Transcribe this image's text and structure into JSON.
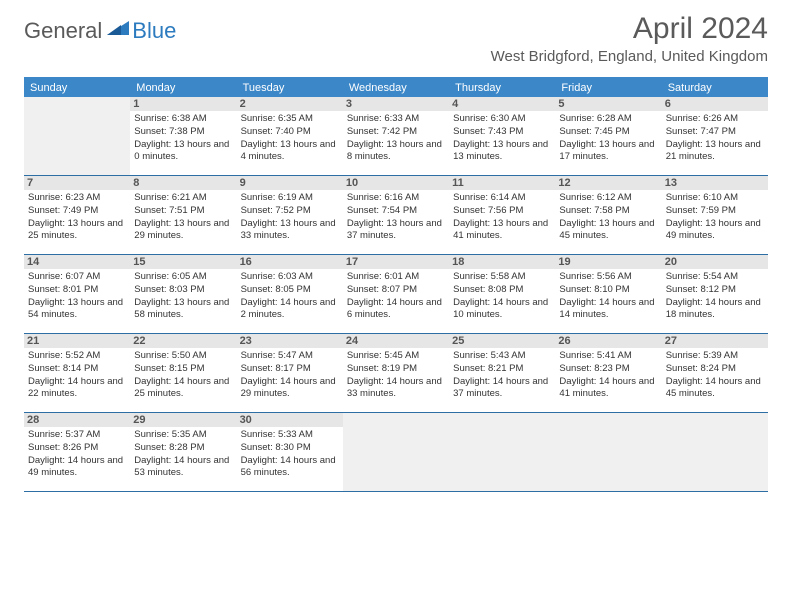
{
  "logo": {
    "text_general": "General",
    "text_blue": "Blue"
  },
  "title": "April 2024",
  "location": "West Bridgford, England, United Kingdom",
  "colors": {
    "header_bg": "#3b87c8",
    "header_text": "#ffffff",
    "divider": "#2d6ea5",
    "daynum_bg": "#e6e6e6",
    "empty_bg": "#f0f0f0",
    "text": "#333333",
    "title_text": "#5a5a5a"
  },
  "days_of_week": [
    "Sunday",
    "Monday",
    "Tuesday",
    "Wednesday",
    "Thursday",
    "Friday",
    "Saturday"
  ],
  "weeks": [
    [
      {
        "empty": true
      },
      {
        "num": "1",
        "sunrise": "6:38 AM",
        "sunset": "7:38 PM",
        "daylight": "13 hours and 0 minutes."
      },
      {
        "num": "2",
        "sunrise": "6:35 AM",
        "sunset": "7:40 PM",
        "daylight": "13 hours and 4 minutes."
      },
      {
        "num": "3",
        "sunrise": "6:33 AM",
        "sunset": "7:42 PM",
        "daylight": "13 hours and 8 minutes."
      },
      {
        "num": "4",
        "sunrise": "6:30 AM",
        "sunset": "7:43 PM",
        "daylight": "13 hours and 13 minutes."
      },
      {
        "num": "5",
        "sunrise": "6:28 AM",
        "sunset": "7:45 PM",
        "daylight": "13 hours and 17 minutes."
      },
      {
        "num": "6",
        "sunrise": "6:26 AM",
        "sunset": "7:47 PM",
        "daylight": "13 hours and 21 minutes."
      }
    ],
    [
      {
        "num": "7",
        "sunrise": "6:23 AM",
        "sunset": "7:49 PM",
        "daylight": "13 hours and 25 minutes."
      },
      {
        "num": "8",
        "sunrise": "6:21 AM",
        "sunset": "7:51 PM",
        "daylight": "13 hours and 29 minutes."
      },
      {
        "num": "9",
        "sunrise": "6:19 AM",
        "sunset": "7:52 PM",
        "daylight": "13 hours and 33 minutes."
      },
      {
        "num": "10",
        "sunrise": "6:16 AM",
        "sunset": "7:54 PM",
        "daylight": "13 hours and 37 minutes."
      },
      {
        "num": "11",
        "sunrise": "6:14 AM",
        "sunset": "7:56 PM",
        "daylight": "13 hours and 41 minutes."
      },
      {
        "num": "12",
        "sunrise": "6:12 AM",
        "sunset": "7:58 PM",
        "daylight": "13 hours and 45 minutes."
      },
      {
        "num": "13",
        "sunrise": "6:10 AM",
        "sunset": "7:59 PM",
        "daylight": "13 hours and 49 minutes."
      }
    ],
    [
      {
        "num": "14",
        "sunrise": "6:07 AM",
        "sunset": "8:01 PM",
        "daylight": "13 hours and 54 minutes."
      },
      {
        "num": "15",
        "sunrise": "6:05 AM",
        "sunset": "8:03 PM",
        "daylight": "13 hours and 58 minutes."
      },
      {
        "num": "16",
        "sunrise": "6:03 AM",
        "sunset": "8:05 PM",
        "daylight": "14 hours and 2 minutes."
      },
      {
        "num": "17",
        "sunrise": "6:01 AM",
        "sunset": "8:07 PM",
        "daylight": "14 hours and 6 minutes."
      },
      {
        "num": "18",
        "sunrise": "5:58 AM",
        "sunset": "8:08 PM",
        "daylight": "14 hours and 10 minutes."
      },
      {
        "num": "19",
        "sunrise": "5:56 AM",
        "sunset": "8:10 PM",
        "daylight": "14 hours and 14 minutes."
      },
      {
        "num": "20",
        "sunrise": "5:54 AM",
        "sunset": "8:12 PM",
        "daylight": "14 hours and 18 minutes."
      }
    ],
    [
      {
        "num": "21",
        "sunrise": "5:52 AM",
        "sunset": "8:14 PM",
        "daylight": "14 hours and 22 minutes."
      },
      {
        "num": "22",
        "sunrise": "5:50 AM",
        "sunset": "8:15 PM",
        "daylight": "14 hours and 25 minutes."
      },
      {
        "num": "23",
        "sunrise": "5:47 AM",
        "sunset": "8:17 PM",
        "daylight": "14 hours and 29 minutes."
      },
      {
        "num": "24",
        "sunrise": "5:45 AM",
        "sunset": "8:19 PM",
        "daylight": "14 hours and 33 minutes."
      },
      {
        "num": "25",
        "sunrise": "5:43 AM",
        "sunset": "8:21 PM",
        "daylight": "14 hours and 37 minutes."
      },
      {
        "num": "26",
        "sunrise": "5:41 AM",
        "sunset": "8:23 PM",
        "daylight": "14 hours and 41 minutes."
      },
      {
        "num": "27",
        "sunrise": "5:39 AM",
        "sunset": "8:24 PM",
        "daylight": "14 hours and 45 minutes."
      }
    ],
    [
      {
        "num": "28",
        "sunrise": "5:37 AM",
        "sunset": "8:26 PM",
        "daylight": "14 hours and 49 minutes."
      },
      {
        "num": "29",
        "sunrise": "5:35 AM",
        "sunset": "8:28 PM",
        "daylight": "14 hours and 53 minutes."
      },
      {
        "num": "30",
        "sunrise": "5:33 AM",
        "sunset": "8:30 PM",
        "daylight": "14 hours and 56 minutes."
      },
      {
        "empty": true
      },
      {
        "empty": true
      },
      {
        "empty": true
      },
      {
        "empty": true
      }
    ]
  ],
  "labels": {
    "sunrise": "Sunrise:",
    "sunset": "Sunset:",
    "daylight": "Daylight:"
  }
}
